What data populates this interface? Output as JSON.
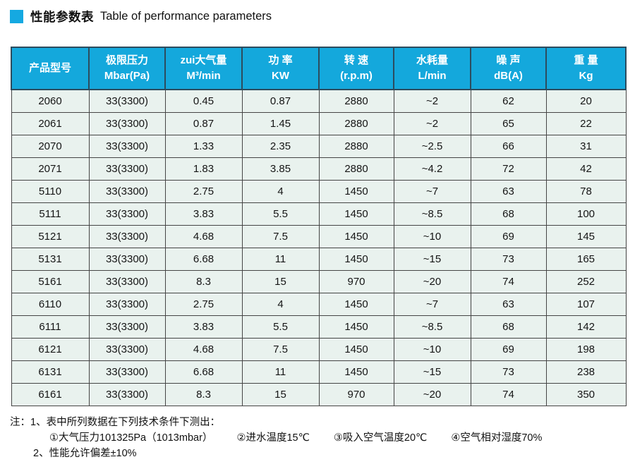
{
  "title": {
    "zh": "性能参数表",
    "en": "Table of performance parameters"
  },
  "colors": {
    "accent_blue": "#14a8dc",
    "icon_blue": "#15a9e1",
    "row_bg": "#e9f2ee",
    "header_border": "#2d4c5e"
  },
  "table": {
    "headers": [
      {
        "line1": "产品型号",
        "line2": ""
      },
      {
        "line1": "极限压力",
        "line2": "Mbar(Pa)"
      },
      {
        "line1": "zui大气量",
        "line2": "M³/min"
      },
      {
        "line1": "功 率",
        "line2": "KW"
      },
      {
        "line1": "转 速",
        "line2": "(r.p.m)"
      },
      {
        "line1": "水耗量",
        "line2": "L/min"
      },
      {
        "line1": "噪 声",
        "line2": "dB(A)"
      },
      {
        "line1": "重 量",
        "line2": "Kg"
      }
    ],
    "rows": [
      [
        "2060",
        "33(3300)",
        "0.45",
        "0.87",
        "2880",
        "~2",
        "62",
        "20"
      ],
      [
        "2061",
        "33(3300)",
        "0.87",
        "1.45",
        "2880",
        "~2",
        "65",
        "22"
      ],
      [
        "2070",
        "33(3300)",
        "1.33",
        "2.35",
        "2880",
        "~2.5",
        "66",
        "31"
      ],
      [
        "2071",
        "33(3300)",
        "1.83",
        "3.85",
        "2880",
        "~4.2",
        "72",
        "42"
      ],
      [
        "5110",
        "33(3300)",
        "2.75",
        "4",
        "1450",
        "~7",
        "63",
        "78"
      ],
      [
        "5111",
        "33(3300)",
        "3.83",
        "5.5",
        "1450",
        "~8.5",
        "68",
        "100"
      ],
      [
        "5121",
        "33(3300)",
        "4.68",
        "7.5",
        "1450",
        "~10",
        "69",
        "145"
      ],
      [
        "5131",
        "33(3300)",
        "6.68",
        "11",
        "1450",
        "~15",
        "73",
        "165"
      ],
      [
        "5161",
        "33(3300)",
        "8.3",
        "15",
        "970",
        "~20",
        "74",
        "252"
      ],
      [
        "6110",
        "33(3300)",
        "2.75",
        "4",
        "1450",
        "~7",
        "63",
        "107"
      ],
      [
        "6111",
        "33(3300)",
        "3.83",
        "5.5",
        "1450",
        "~8.5",
        "68",
        "142"
      ],
      [
        "6121",
        "33(3300)",
        "4.68",
        "7.5",
        "1450",
        "~10",
        "69",
        "198"
      ],
      [
        "6131",
        "33(3300)",
        "6.68",
        "11",
        "1450",
        "~15",
        "73",
        "238"
      ],
      [
        "6161",
        "33(3300)",
        "8.3",
        "15",
        "970",
        "~20",
        "74",
        "350"
      ]
    ]
  },
  "notes": {
    "line1": "注：1、表中所列数据在下列技术条件下测出：",
    "line2_items": [
      "①大气压力101325Pa（1013mbar）",
      "②进水温度15℃",
      "③吸入空气温度20℃",
      "④空气相对湿度70%"
    ],
    "line3": "2、性能允许偏差±10%"
  }
}
